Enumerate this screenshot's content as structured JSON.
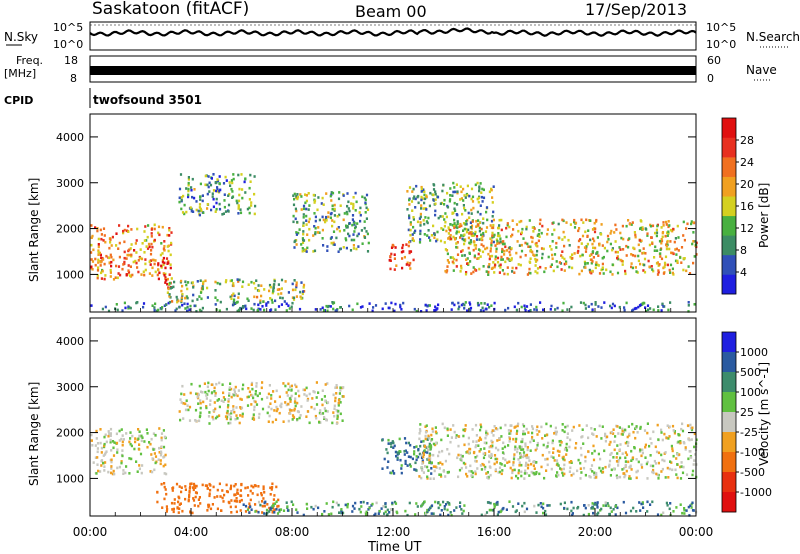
{
  "header": {
    "station": "Saskatoon (fitACF)",
    "beam": "Beam 00",
    "date": "17/Sep/2013"
  },
  "panels": {
    "noise": {
      "left_label": "N.Sky",
      "right_label": "N.Search",
      "tick_top": "10^5",
      "tick_bottom": "10^0",
      "right_tick_top": "10^5",
      "right_tick_bottom": "10^0"
    },
    "freq": {
      "left_label_1": "Freq.",
      "left_label_2": "[MHz]",
      "left_tick_top": "18",
      "left_tick_bottom": "8",
      "right_label": "Nave",
      "right_tick_top": "60",
      "right_tick_bottom": "0"
    },
    "cpid": {
      "label": "CPID",
      "value": "twofsound 3501"
    }
  },
  "colors": {
    "power_scale": [
      "#1f1fe0",
      "#3050b8",
      "#3c8c64",
      "#48b040",
      "#d4d020",
      "#f0a020",
      "#f07020",
      "#e83020",
      "#e01010"
    ],
    "velocity_scale": [
      "#1f1fe0",
      "#2a5aa0",
      "#3d8c6c",
      "#60c040",
      "#c8c8c0",
      "#f0a020",
      "#f07010",
      "#e83010",
      "#e01010"
    ]
  },
  "chart_data": [
    {
      "type": "heatmap",
      "name": "power",
      "ylabel": "Slant Range [km]",
      "xlabel": "",
      "ylim": [
        180,
        4500
      ],
      "yticks": [
        "1000",
        "2000",
        "3000",
        "4000"
      ],
      "xlim": [
        "00:00",
        "24:00"
      ],
      "colorbar": {
        "label": "Power [dB]",
        "ticks": [
          "4",
          "8",
          "12",
          "16",
          "20",
          "24",
          "28"
        ],
        "range": [
          0,
          32
        ]
      },
      "regions": [
        {
          "t_start": 0.0,
          "t_end": 3.2,
          "range_km": [
            900,
            2100
          ],
          "power_db": 22
        },
        {
          "t_start": 2.6,
          "t_end": 3.2,
          "range_km": [
            700,
            1400
          ],
          "power_db": 30
        },
        {
          "t_start": 3.0,
          "t_end": 8.5,
          "range_km": [
            400,
            900
          ],
          "power_db": 14
        },
        {
          "t_start": 3.5,
          "t_end": 6.5,
          "range_km": [
            2300,
            3200
          ],
          "power_db": 10
        },
        {
          "t_start": 8.0,
          "t_end": 11.0,
          "range_km": [
            1500,
            2800
          ],
          "power_db": 12
        },
        {
          "t_start": 11.8,
          "t_end": 12.8,
          "range_km": [
            1100,
            1700
          ],
          "power_db": 28
        },
        {
          "t_start": 12.5,
          "t_end": 16.0,
          "range_km": [
            1700,
            3000
          ],
          "power_db": 12
        },
        {
          "t_start": 14.0,
          "t_end": 24.0,
          "range_km": [
            1000,
            2200
          ],
          "power_db": 18
        },
        {
          "t_start": 0.0,
          "t_end": 24.0,
          "range_km": [
            200,
            400
          ],
          "power_db": 6
        }
      ]
    },
    {
      "type": "heatmap",
      "name": "velocity",
      "ylabel": "Slant Range [km]",
      "xlabel": "Time UT",
      "ylim": [
        180,
        4500
      ],
      "yticks": [
        "1000",
        "2000",
        "3000",
        "4000"
      ],
      "xticks": [
        "00:00",
        "04:00",
        "08:00",
        "12:00",
        "16:00",
        "20:00",
        "00:00"
      ],
      "colorbar": {
        "label": "Velocity [m s^-1]",
        "ticks": [
          "1000",
          "500",
          "100",
          "25",
          "-25",
          "-100",
          "-500",
          "-1000"
        ]
      },
      "regions": [
        {
          "t_start": 0.0,
          "t_end": 3.0,
          "range_km": [
            1100,
            2100
          ],
          "velocity_ms": 0
        },
        {
          "t_start": 2.5,
          "t_end": 7.5,
          "range_km": [
            250,
            900
          ],
          "velocity_ms": -300
        },
        {
          "t_start": 3.5,
          "t_end": 10.0,
          "range_km": [
            2200,
            3100
          ],
          "velocity_ms": 0
        },
        {
          "t_start": 11.5,
          "t_end": 13.5,
          "range_km": [
            1100,
            1900
          ],
          "velocity_ms": 100
        },
        {
          "t_start": 13.0,
          "t_end": 24.0,
          "range_km": [
            1000,
            2200
          ],
          "velocity_ms": 0
        },
        {
          "t_start": 6.0,
          "t_end": 24.0,
          "range_km": [
            200,
            500
          ],
          "velocity_ms": 80
        }
      ]
    }
  ]
}
